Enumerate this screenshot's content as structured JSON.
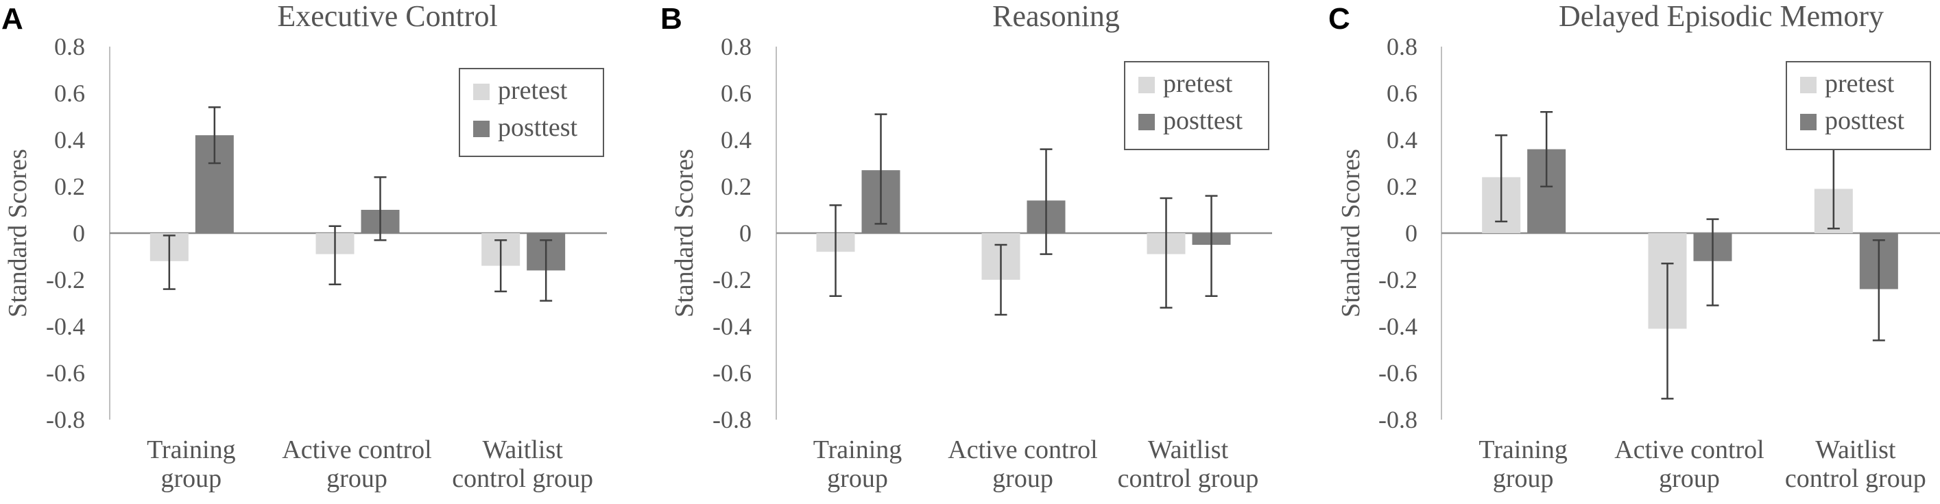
{
  "chart_data": [
    {
      "type": "bar",
      "panel": "A",
      "title": "Executive Control",
      "ylabel": "Standard Scores",
      "xlabel": "",
      "ylim": [
        -0.8,
        0.8
      ],
      "yticks": [
        "0.8",
        "0.6",
        "0.4",
        "0.2",
        "0",
        "-0.2",
        "-0.4",
        "-0.6",
        "-0.8"
      ],
      "categories": [
        [
          "Training",
          "group"
        ],
        [
          "Active control",
          "group"
        ],
        [
          "Waitlist",
          "control group"
        ]
      ],
      "legend": "top-right",
      "series": [
        {
          "name": "pretest",
          "color": "#d9d9d9",
          "values": [
            -0.12,
            -0.09,
            -0.14
          ],
          "err_low": [
            -0.24,
            -0.22,
            -0.25
          ],
          "err_high": [
            -0.01,
            0.03,
            -0.03
          ]
        },
        {
          "name": "posttest",
          "color": "#7f7f7f",
          "values": [
            0.42,
            0.1,
            -0.16
          ],
          "err_low": [
            0.3,
            -0.03,
            -0.29
          ],
          "err_high": [
            0.54,
            0.24,
            -0.03
          ]
        }
      ]
    },
    {
      "type": "bar",
      "panel": "B",
      "title": "Reasoning",
      "ylabel": "Standard Scores",
      "xlabel": "",
      "ylim": [
        -0.8,
        0.8
      ],
      "yticks": [
        "0.8",
        "0.6",
        "0.4",
        "0.2",
        "0",
        "-0.2",
        "-0.4",
        "-0.6",
        "-0.8"
      ],
      "categories": [
        [
          "Training",
          "group"
        ],
        [
          "Active control",
          "group"
        ],
        [
          "Waitlist",
          "control group"
        ]
      ],
      "legend": "top-right",
      "series": [
        {
          "name": "pretest",
          "color": "#d9d9d9",
          "values": [
            -0.08,
            -0.2,
            -0.09
          ],
          "err_low": [
            -0.27,
            -0.35,
            -0.32
          ],
          "err_high": [
            0.12,
            -0.05,
            0.15
          ]
        },
        {
          "name": "posttest",
          "color": "#7f7f7f",
          "values": [
            0.27,
            0.14,
            -0.05
          ],
          "err_low": [
            0.04,
            -0.09,
            -0.27
          ],
          "err_high": [
            0.51,
            0.36,
            0.16
          ]
        }
      ]
    },
    {
      "type": "bar",
      "panel": "C",
      "title": "Delayed Episodic Memory",
      "ylabel": "Standard Scores",
      "xlabel": "",
      "ylim": [
        -0.8,
        0.8
      ],
      "yticks": [
        "0.8",
        "0.6",
        "0.4",
        "0.2",
        "0",
        "-0.2",
        "-0.4",
        "-0.6",
        "-0.8"
      ],
      "categories": [
        [
          "Training",
          "group"
        ],
        [
          "Active control",
          "group"
        ],
        [
          "Waitlist",
          "control group"
        ]
      ],
      "legend": "top-right",
      "series": [
        {
          "name": "pretest",
          "color": "#d9d9d9",
          "values": [
            0.24,
            -0.41,
            0.19
          ],
          "err_low": [
            0.05,
            -0.71,
            0.02
          ],
          "err_high": [
            0.42,
            -0.13,
            0.36
          ]
        },
        {
          "name": "posttest",
          "color": "#7f7f7f",
          "values": [
            0.36,
            -0.12,
            -0.24
          ],
          "err_low": [
            0.2,
            -0.31,
            -0.46
          ],
          "err_high": [
            0.52,
            0.06,
            -0.03
          ]
        }
      ]
    }
  ]
}
